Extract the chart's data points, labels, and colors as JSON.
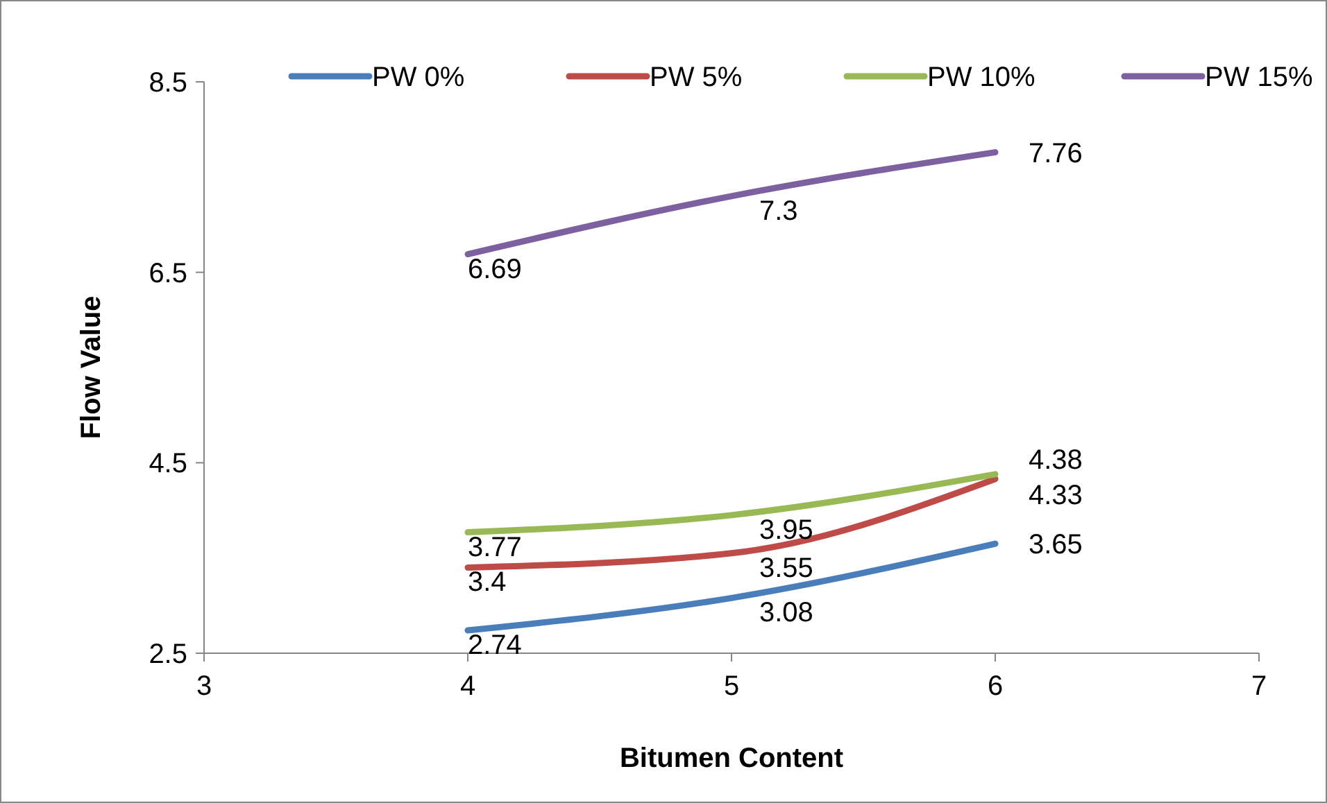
{
  "chart_data": {
    "type": "line",
    "xlabel": "Bitumen Content",
    "ylabel": "Flow Value",
    "x": [
      4,
      5,
      6
    ],
    "series": [
      {
        "name": "PW 0%",
        "color": "#4a7ebb",
        "values": [
          2.74,
          3.08,
          3.65
        ]
      },
      {
        "name": "PW 5%",
        "color": "#be4b48",
        "values": [
          3.4,
          3.55,
          4.33
        ]
      },
      {
        "name": "PW 10%",
        "color": "#98b954",
        "values": [
          3.77,
          3.95,
          4.38
        ]
      },
      {
        "name": "PW 15%",
        "color": "#7d60a0",
        "values": [
          6.69,
          7.3,
          7.76
        ]
      }
    ],
    "xlim": [
      3,
      7
    ],
    "xticks": [
      3,
      4,
      5,
      6,
      7
    ],
    "ylim": [
      2.5,
      8.5
    ],
    "yticks": [
      2.5,
      4.5,
      6.5,
      8.5
    ],
    "data_labels": true,
    "legend": "top",
    "grid": false,
    "marker": "none",
    "line_style": "solid"
  }
}
